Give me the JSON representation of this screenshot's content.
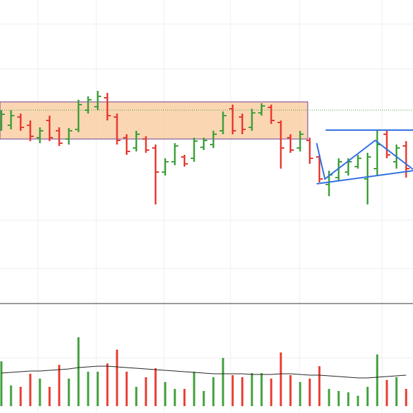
{
  "chart_data": {
    "type": "ohlc",
    "up_color": "#3f9f3a",
    "down_color": "#e8392f",
    "ma_color": "#222222",
    "ylim": [
      0,
      440
    ],
    "volume_lim": [
      0,
      150
    ],
    "open": [
      258,
      258,
      270,
      258,
      240,
      265,
      250,
      238,
      252,
      280,
      285,
      298,
      270,
      240,
      225,
      238,
      225,
      190,
      205,
      212,
      210,
      226,
      230,
      250,
      282,
      270,
      255,
      276,
      284,
      262,
      240,
      225,
      236,
      212,
      172,
      182,
      190,
      198,
      180,
      195,
      245,
      205,
      228
    ],
    "high": [
      280,
      280,
      275,
      265,
      255,
      272,
      255,
      254,
      295,
      300,
      308,
      305,
      275,
      245,
      250,
      242,
      230,
      210,
      232,
      215,
      240,
      240,
      250,
      278,
      288,
      275,
      282,
      290,
      288,
      265,
      245,
      250,
      240,
      215,
      192,
      210,
      210,
      215,
      218,
      250,
      252,
      230,
      235
    ],
    "low": [
      250,
      252,
      250,
      235,
      232,
      235,
      228,
      230,
      248,
      275,
      280,
      265,
      230,
      215,
      220,
      218,
      143,
      185,
      200,
      198,
      205,
      222,
      225,
      245,
      245,
      245,
      250,
      272,
      260,
      195,
      218,
      220,
      202,
      175,
      155,
      178,
      185,
      195,
      143,
      185,
      210,
      195,
      182
    ],
    "close": [
      274,
      272,
      255,
      242,
      250,
      240,
      232,
      250,
      288,
      295,
      300,
      272,
      236,
      220,
      245,
      222,
      190,
      205,
      228,
      202,
      235,
      236,
      245,
      272,
      250,
      252,
      276,
      286,
      265,
      225,
      222,
      245,
      210,
      180,
      186,
      205,
      205,
      210,
      212,
      230,
      215,
      225,
      195
    ],
    "volume": [
      65,
      30,
      28,
      47,
      40,
      28,
      60,
      40,
      100,
      50,
      50,
      62,
      82,
      50,
      28,
      42,
      55,
      35,
      25,
      25,
      50,
      22,
      42,
      70,
      45,
      42,
      48,
      48,
      40,
      78,
      45,
      35,
      40,
      58,
      25,
      22,
      20,
      15,
      28,
      75,
      38,
      42,
      25
    ],
    "volume_ma": [
      48,
      49,
      50,
      51,
      51,
      52,
      53,
      54,
      56,
      57,
      58,
      58,
      57,
      56,
      55,
      54,
      53,
      52,
      51,
      50,
      49,
      48,
      47,
      47,
      47,
      47,
      46,
      46,
      46,
      47,
      47,
      46,
      45,
      45,
      44,
      43,
      42,
      41,
      41,
      42,
      43,
      44,
      45
    ]
  }
}
